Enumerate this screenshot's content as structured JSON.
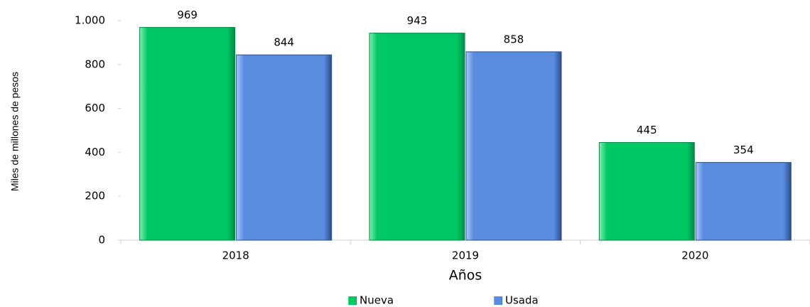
{
  "chart_data": {
    "type": "bar",
    "y_label": "Miles de millones de pesos",
    "x_label": "Años",
    "categories": [
      "2018",
      "2019",
      "2020"
    ],
    "series": [
      {
        "name": "Nueva",
        "color": "#00c864",
        "values": [
          969,
          943,
          445
        ]
      },
      {
        "name": "Usada",
        "color": "#5a8ce0",
        "values": [
          844,
          858,
          354
        ]
      }
    ],
    "ylim": [
      0,
      1000
    ],
    "yticks": [
      0,
      200,
      400,
      600,
      800,
      {
        "value": 1000,
        "label": "1.000"
      }
    ],
    "legend": "bottom"
  }
}
